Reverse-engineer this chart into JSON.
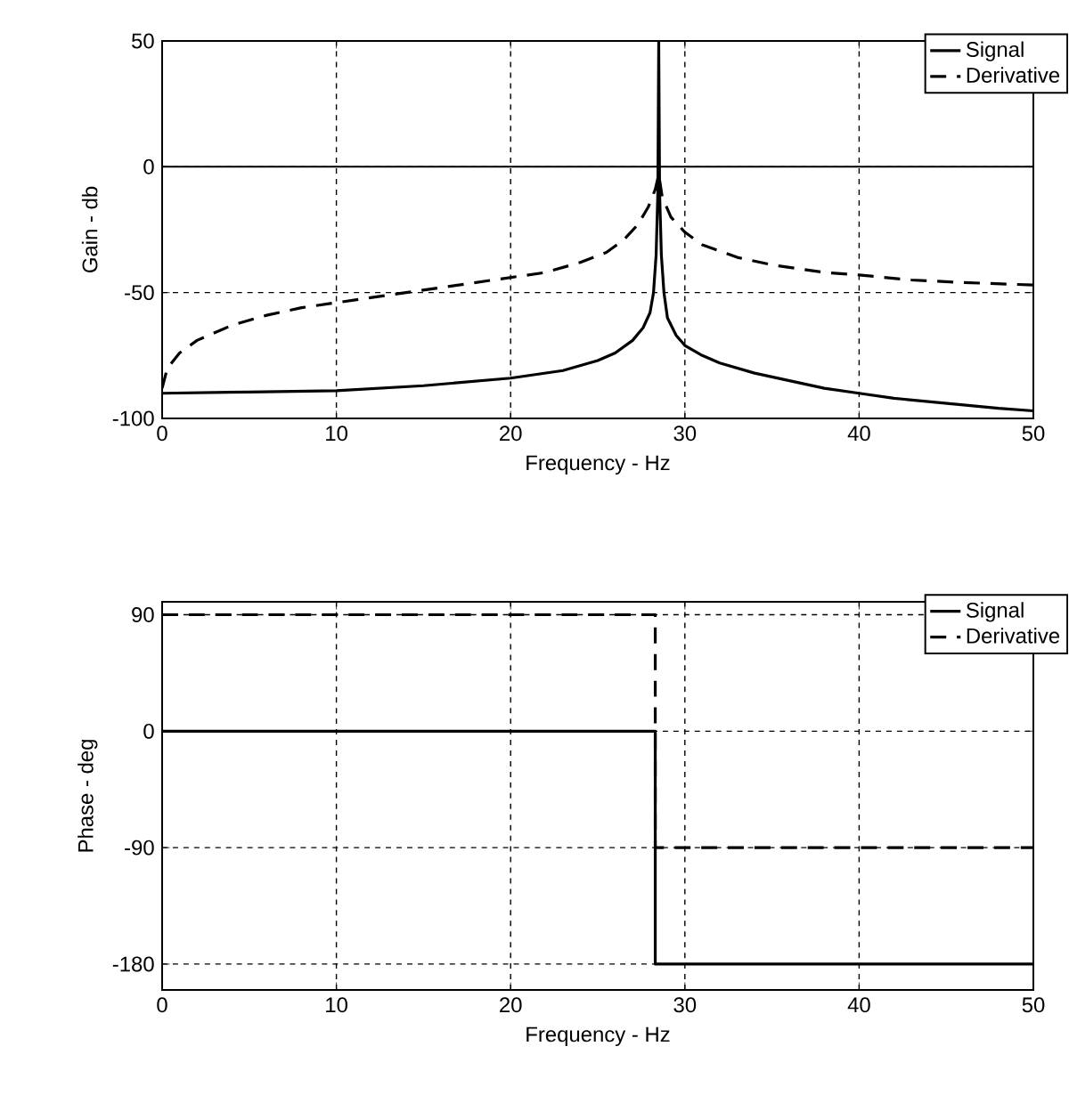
{
  "chart_data": [
    {
      "type": "line",
      "xlabel": "Frequency - Hz",
      "ylabel": "Gain - db",
      "xlim": [
        0,
        50
      ],
      "ylim": [
        -100,
        50
      ],
      "xticks": [
        0,
        10,
        20,
        30,
        40,
        50
      ],
      "yticks": [
        -100,
        -50,
        0,
        50
      ],
      "grid": true,
      "legend": "top right",
      "ref_lines": [
        {
          "axis": "y",
          "value": 0,
          "line_style": "solid"
        }
      ],
      "series": [
        {
          "name": "Signal",
          "color": "#000000",
          "line_style": "solid",
          "x": [
            0,
            5,
            10,
            15,
            20,
            23,
            25,
            26,
            27,
            27.6,
            28,
            28.2,
            28.35,
            28.45,
            28.5,
            28.55,
            28.65,
            28.8,
            29,
            29.5,
            30,
            31,
            32,
            34,
            36,
            38,
            40,
            42,
            45,
            48,
            50
          ],
          "values": [
            -90,
            -89.5,
            -89,
            -87,
            -84,
            -81,
            -77,
            -74,
            -69,
            -64,
            -58,
            -50,
            -35,
            -10,
            50,
            -10,
            -35,
            -50,
            -60,
            -67,
            -71,
            -75,
            -78,
            -82,
            -85,
            -88,
            -90,
            -92,
            -94,
            -96,
            -97
          ]
        },
        {
          "name": "Derivative",
          "color": "#000000",
          "line_style": "dashed",
          "x": [
            0,
            0.3,
            1,
            2,
            4,
            6,
            8,
            10,
            13,
            16,
            19,
            22,
            24,
            25.5,
            26.5,
            27.3,
            27.9,
            28.3,
            28.5,
            28.7,
            29.2,
            30,
            31,
            33,
            35,
            38,
            40,
            43,
            46,
            50
          ],
          "values": [
            -88,
            -80,
            -74,
            -69,
            -63,
            -59,
            -56,
            -54,
            -51,
            -48,
            -45,
            -42,
            -38,
            -34,
            -29,
            -23,
            -16,
            -9,
            -3,
            -12,
            -20,
            -26,
            -31,
            -36,
            -39,
            -42,
            -43,
            -45,
            -46,
            -47
          ]
        }
      ]
    },
    {
      "type": "line",
      "xlabel": "Frequency - Hz",
      "ylabel": "Phase - deg",
      "xlim": [
        0,
        50
      ],
      "ylim": [
        -200,
        100
      ],
      "xticks": [
        0,
        10,
        20,
        30,
        40,
        50
      ],
      "yticks": [
        -180,
        -90,
        0,
        90
      ],
      "grid": true,
      "legend": "top right",
      "series": [
        {
          "name": "Signal",
          "color": "#000000",
          "line_style": "solid",
          "x": [
            0,
            28.3,
            28.3,
            50
          ],
          "values": [
            0,
            0,
            -180,
            -180
          ]
        },
        {
          "name": "Derivative",
          "color": "#000000",
          "line_style": "dashed",
          "x": [
            0,
            28.3,
            28.3,
            50
          ],
          "values": [
            90,
            90,
            -90,
            -90
          ]
        }
      ]
    }
  ]
}
